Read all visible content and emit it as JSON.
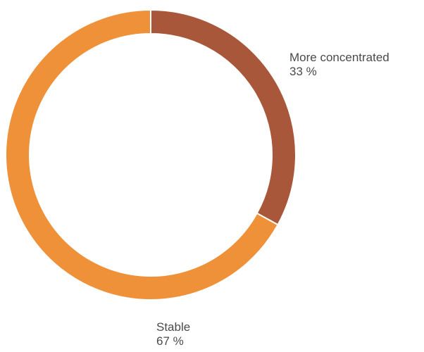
{
  "chart_data": {
    "type": "pie",
    "variant": "donut",
    "title": "",
    "slices": [
      {
        "label": "More concentrated",
        "value": 33,
        "display": "33 %",
        "color": "#A9573A"
      },
      {
        "label": "Stable",
        "value": 67,
        "display": "67 %",
        "color": "#EE9139"
      }
    ],
    "start_angle_deg": 0,
    "direction": "clockwise",
    "legend": "none"
  },
  "colors": {
    "background": "#FFFFFF",
    "separator": "#FFFFFF",
    "label_text": "#4A4A4A"
  }
}
